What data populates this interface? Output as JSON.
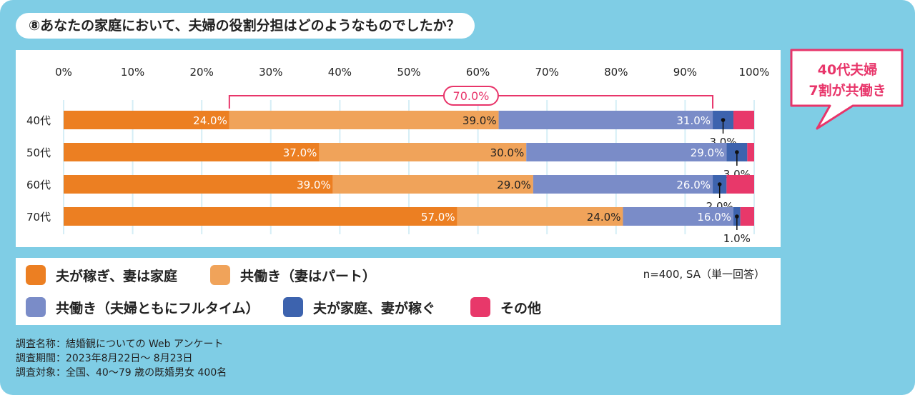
{
  "question": "⑧あなたの家庭において、夫婦の役割分担はどのようなものでしたか？",
  "callout": {
    "line1": "40代夫婦",
    "line2": "7割が共働き",
    "color": "#e8356a"
  },
  "bracket_label": "70.0%",
  "chart_data": {
    "type": "bar",
    "orientation": "horizontal",
    "stacked": true,
    "xlim": [
      0,
      100
    ],
    "x_ticks": [
      "0%",
      "10%",
      "20%",
      "30%",
      "40%",
      "50%",
      "60%",
      "70%",
      "80%",
      "90%",
      "100%"
    ],
    "categories": [
      "40代",
      "50代",
      "60代",
      "70代"
    ],
    "series": [
      {
        "name": "夫が稼ぎ、妻は家庭",
        "color": "#ec7f22",
        "values": [
          24.0,
          37.0,
          39.0,
          57.0
        ],
        "labels": [
          "24.0%",
          "37.0%",
          "39.0%",
          "57.0%"
        ]
      },
      {
        "name": "共働き（妻はパート）",
        "color": "#f0a35a",
        "values": [
          39.0,
          30.0,
          29.0,
          24.0
        ],
        "labels": [
          "39.0%",
          "30.0%",
          "29.0%",
          "24.0%"
        ]
      },
      {
        "name": "共働き（夫婦ともにフルタイム）",
        "color": "#7a8cc8",
        "values": [
          31.0,
          29.0,
          26.0,
          16.0
        ],
        "labels": [
          "31.0%",
          "29.0%",
          "26.0%",
          "16.0%"
        ]
      },
      {
        "name": "夫が家庭、妻が稼ぐ",
        "color": "#3d63ae",
        "values": [
          3.0,
          3.0,
          2.0,
          1.0
        ],
        "labels": [
          "3.0%",
          "3.0%",
          "2.0%",
          "1.0%"
        ]
      },
      {
        "name": "その他",
        "color": "#e8386a",
        "values": [
          3.0,
          1.0,
          4.0,
          2.0
        ]
      }
    ],
    "grid": true,
    "legend_position": "bottom"
  },
  "sample_note": "n=400, SA（単一回答）",
  "survey": {
    "name": "調査名称：結婚観についての Web アンケート",
    "period": "調査期間：2023年8月22日～ 8月23日",
    "target": "調査対象：全国、40～79 歳の既婚男女 400名"
  }
}
